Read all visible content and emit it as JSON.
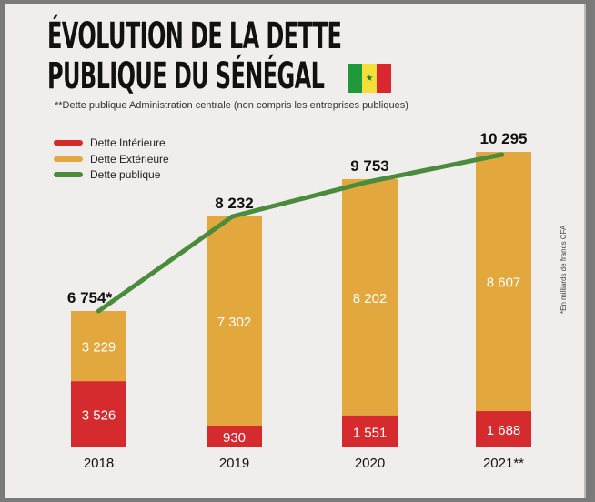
{
  "chart_data": {
    "type": "bar",
    "title": "ÉVOLUTION DE LA DETTE PUBLIQUE DU SÉNÉGAL",
    "subtitle": "**Dette publique Administration centrale (non compris les entreprises publiques)",
    "note": "*En milliards de francs CFA",
    "stacked": true,
    "categories": [
      "2018",
      "2019",
      "2020",
      "2021**"
    ],
    "total_labels": [
      "6 754*",
      "8 232",
      "9 753",
      "10 295"
    ],
    "series": [
      {
        "name": "Dette Intérieure",
        "color": "#d52b2f",
        "values": [
          3526,
          930,
          1551,
          1688
        ],
        "labels": [
          "3 526",
          "930",
          "1 551",
          "1 688"
        ]
      },
      {
        "name": "Dette Extérieure",
        "color": "#e2a83e",
        "values": [
          3229,
          7302,
          8202,
          8607
        ],
        "labels": [
          "3 229",
          "7 302",
          "8 202",
          "8 607"
        ]
      },
      {
        "name": "Dette publique",
        "type": "line",
        "color": "#4a8c3c",
        "values": [
          6754,
          8232,
          9753,
          10295
        ]
      }
    ],
    "flag_colors": [
      "#1e9a3c",
      "#f4df3a",
      "#d9282e"
    ],
    "grid": false,
    "legend": "top-left"
  }
}
